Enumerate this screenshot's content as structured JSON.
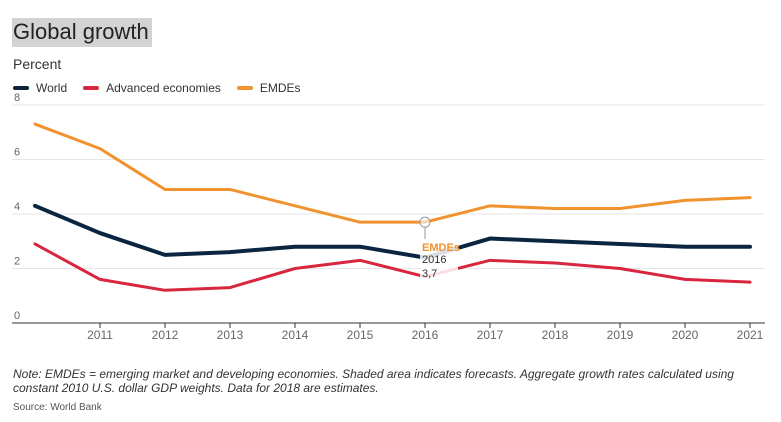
{
  "title": "Global growth",
  "subtitle": "Percent",
  "note": "Note: EMDEs = emerging market and developing economies. Shaded area indicates forecasts. Aggregate growth rates calculated using constant 2010 U.S. dollar GDP weights. Data for 2018 are estimates.",
  "source": "Source: World Bank",
  "colors": {
    "world": "#0a2540",
    "advanced": "#d7263d",
    "emdes": "#f0922d",
    "grid": "#e6e6e6",
    "axis": "#333333",
    "tick_text": "#666666"
  },
  "chart_data": {
    "type": "line",
    "x": [
      2010,
      2011,
      2012,
      2013,
      2014,
      2015,
      2016,
      2017,
      2018,
      2019,
      2020,
      2021
    ],
    "x_tick_labels": [
      "2011",
      "2012",
      "2013",
      "2014",
      "2015",
      "2016",
      "2017",
      "2018",
      "2019",
      "2020",
      "2021"
    ],
    "y_tick_labels": [
      "0",
      "2",
      "4",
      "6",
      "8"
    ],
    "ylim": [
      0,
      8
    ],
    "grid": true,
    "legend_position": "top-left",
    "series": [
      {
        "name": "World",
        "color": "#0a2540",
        "values": [
          4.3,
          3.3,
          2.5,
          2.6,
          2.8,
          2.8,
          2.4,
          3.1,
          3.0,
          2.9,
          2.8,
          2.8
        ]
      },
      {
        "name": "Advanced economies",
        "color": "#d7263d",
        "values": [
          2.9,
          1.6,
          1.2,
          1.3,
          2.0,
          2.3,
          1.7,
          2.3,
          2.2,
          2.0,
          1.6,
          1.5
        ]
      },
      {
        "name": "EMDEs",
        "color": "#f0922d",
        "values": [
          7.3,
          6.4,
          4.9,
          4.9,
          4.3,
          3.7,
          3.7,
          4.3,
          4.2,
          4.2,
          4.5,
          4.6
        ]
      }
    ],
    "tooltip": {
      "series": "EMDEs",
      "x_label": "2016",
      "value_label": "3,7"
    }
  }
}
